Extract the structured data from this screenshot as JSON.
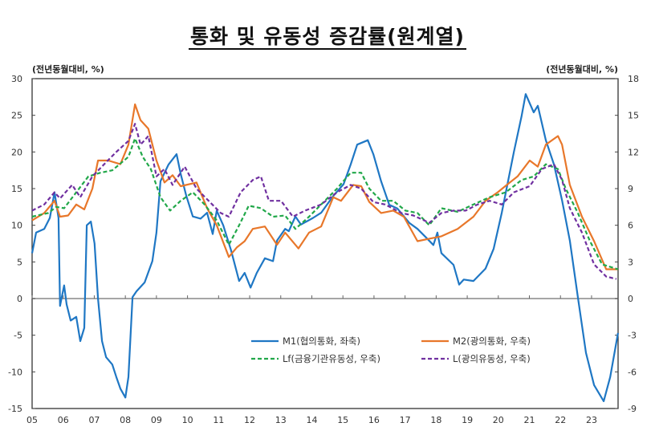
{
  "chart_data": {
    "type": "line",
    "title": "통화 및 유동성 증감률(원계열)",
    "ylabel_left": "(전년동월대비, %)",
    "ylabel_right": "(전년동월대비, %)",
    "ylim_left": [
      -15,
      30
    ],
    "ylim_right": [
      -9,
      18
    ],
    "yticks_left": [
      30,
      25,
      20,
      15,
      10,
      5,
      0,
      -5,
      -10,
      -15
    ],
    "yticks_right": [
      18,
      15,
      12,
      9,
      6,
      3,
      0,
      -3,
      -6,
      -9
    ],
    "xlim": [
      2005.0,
      2023.85
    ],
    "xticks": [
      {
        "year": 2005,
        "label": "05"
      },
      {
        "year": 2006,
        "label": "06"
      },
      {
        "year": 2007,
        "label": "07"
      },
      {
        "year": 2008,
        "label": "08"
      },
      {
        "year": 2009,
        "label": "09"
      },
      {
        "year": 2010,
        "label": "10"
      },
      {
        "year": 2011,
        "label": "11"
      },
      {
        "year": 2012,
        "label": "12"
      },
      {
        "year": 2013,
        "label": "13"
      },
      {
        "year": 2014,
        "label": "14"
      },
      {
        "year": 2015,
        "label": "15"
      },
      {
        "year": 2016,
        "label": "16"
      },
      {
        "year": 2017,
        "label": "17"
      },
      {
        "year": 2018,
        "label": "18"
      },
      {
        "year": 2019,
        "label": "19"
      },
      {
        "year": 2020,
        "label": "20"
      },
      {
        "year": 2021,
        "label": "21"
      },
      {
        "year": 2022,
        "label": "22"
      },
      {
        "year": 2023,
        "label": "23"
      }
    ],
    "legend_position": "bottom-center",
    "grid": false,
    "series": [
      {
        "name": "M1(협의통화, 좌축)",
        "axis": "left",
        "color": "#1f77c4",
        "dash": false,
        "points": [
          [
            2005.0,
            6.2
          ],
          [
            2005.13,
            9.0
          ],
          [
            2005.39,
            9.5
          ],
          [
            2005.57,
            11.0
          ],
          [
            2005.72,
            14.5
          ],
          [
            2005.85,
            11.0
          ],
          [
            2005.9,
            -1.0
          ],
          [
            2006.03,
            1.8
          ],
          [
            2006.11,
            -0.8
          ],
          [
            2006.24,
            -3.0
          ],
          [
            2006.42,
            -2.5
          ],
          [
            2006.55,
            -5.8
          ],
          [
            2006.68,
            -4.0
          ],
          [
            2006.76,
            10.0
          ],
          [
            2006.89,
            10.5
          ],
          [
            2007.01,
            7.5
          ],
          [
            2007.12,
            0
          ],
          [
            2007.25,
            -5.8
          ],
          [
            2007.38,
            -8.0
          ],
          [
            2007.58,
            -9.0
          ],
          [
            2007.71,
            -10.7
          ],
          [
            2007.84,
            -12.3
          ],
          [
            2008.0,
            -13.5
          ],
          [
            2008.1,
            -10.7
          ],
          [
            2008.23,
            0.2
          ],
          [
            2008.36,
            1.0
          ],
          [
            2008.62,
            2.2
          ],
          [
            2008.87,
            5.1
          ],
          [
            2009.0,
            9.0
          ],
          [
            2009.13,
            16.0
          ],
          [
            2009.39,
            18.3
          ],
          [
            2009.65,
            19.7
          ],
          [
            2009.78,
            17.0
          ],
          [
            2009.96,
            14.0
          ],
          [
            2010.17,
            11.2
          ],
          [
            2010.42,
            10.9
          ],
          [
            2010.63,
            11.7
          ],
          [
            2010.81,
            8.8
          ],
          [
            2010.94,
            12.0
          ],
          [
            2011.15,
            10.0
          ],
          [
            2011.4,
            6.6
          ],
          [
            2011.66,
            2.4
          ],
          [
            2011.84,
            3.5
          ],
          [
            2012.03,
            1.5
          ],
          [
            2012.23,
            3.5
          ],
          [
            2012.49,
            5.5
          ],
          [
            2012.75,
            5.1
          ],
          [
            2012.88,
            7.9
          ],
          [
            2013.14,
            9.5
          ],
          [
            2013.26,
            9.2
          ],
          [
            2013.47,
            11.2
          ],
          [
            2013.65,
            10.1
          ],
          [
            2014.04,
            11.0
          ],
          [
            2014.3,
            11.7
          ],
          [
            2014.69,
            14.0
          ],
          [
            2015.02,
            15.6
          ],
          [
            2015.25,
            18.3
          ],
          [
            2015.46,
            21.0
          ],
          [
            2015.8,
            21.6
          ],
          [
            2015.98,
            19.7
          ],
          [
            2016.23,
            16.0
          ],
          [
            2016.49,
            12.8
          ],
          [
            2016.75,
            12.3
          ],
          [
            2017.14,
            10.3
          ],
          [
            2017.4,
            9.5
          ],
          [
            2017.66,
            8.4
          ],
          [
            2017.91,
            7.3
          ],
          [
            2018.04,
            9.0
          ],
          [
            2018.17,
            6.2
          ],
          [
            2018.56,
            4.6
          ],
          [
            2018.74,
            1.9
          ],
          [
            2018.89,
            2.6
          ],
          [
            2019.2,
            2.4
          ],
          [
            2019.59,
            4.1
          ],
          [
            2019.85,
            6.8
          ],
          [
            2020.11,
            11.7
          ],
          [
            2020.5,
            20.0
          ],
          [
            2020.75,
            24.9
          ],
          [
            2020.88,
            27.9
          ],
          [
            2021.14,
            25.4
          ],
          [
            2021.27,
            26.3
          ],
          [
            2021.53,
            21.6
          ],
          [
            2021.79,
            18.3
          ],
          [
            2022.05,
            13.4
          ],
          [
            2022.3,
            7.9
          ],
          [
            2022.56,
            0.2
          ],
          [
            2022.82,
            -7.4
          ],
          [
            2023.08,
            -11.8
          ],
          [
            2023.39,
            -14.0
          ],
          [
            2023.6,
            -10.7
          ],
          [
            2023.85,
            -4.7
          ]
        ]
      },
      {
        "name": "M2(광의통화, 우축)",
        "axis": "right",
        "color": "#e8772a",
        "dash": false,
        "points": [
          [
            2005.0,
            6.4
          ],
          [
            2005.39,
            7.0
          ],
          [
            2005.72,
            8.0
          ],
          [
            2005.9,
            6.7
          ],
          [
            2006.16,
            6.8
          ],
          [
            2006.42,
            7.7
          ],
          [
            2006.68,
            7.3
          ],
          [
            2006.94,
            9.0
          ],
          [
            2007.12,
            11.3
          ],
          [
            2007.45,
            11.3
          ],
          [
            2007.84,
            11.0
          ],
          [
            2008.1,
            12.6
          ],
          [
            2008.31,
            15.9
          ],
          [
            2008.49,
            14.6
          ],
          [
            2008.74,
            13.9
          ],
          [
            2009.0,
            11.3
          ],
          [
            2009.26,
            9.5
          ],
          [
            2009.52,
            10.1
          ],
          [
            2009.78,
            9.2
          ],
          [
            2010.29,
            9.5
          ],
          [
            2010.63,
            7.4
          ],
          [
            2010.94,
            6.0
          ],
          [
            2011.33,
            3.4
          ],
          [
            2011.59,
            4.2
          ],
          [
            2011.84,
            4.7
          ],
          [
            2012.1,
            5.7
          ],
          [
            2012.49,
            5.9
          ],
          [
            2012.88,
            4.4
          ],
          [
            2013.14,
            5.4
          ],
          [
            2013.57,
            4.1
          ],
          [
            2013.91,
            5.4
          ],
          [
            2014.3,
            5.9
          ],
          [
            2014.69,
            8.3
          ],
          [
            2014.94,
            8.0
          ],
          [
            2015.33,
            9.3
          ],
          [
            2015.59,
            9.2
          ],
          [
            2015.85,
            7.9
          ],
          [
            2016.23,
            7.0
          ],
          [
            2016.62,
            7.2
          ],
          [
            2016.96,
            6.7
          ],
          [
            2017.4,
            4.7
          ],
          [
            2017.78,
            4.9
          ],
          [
            2018.17,
            5.1
          ],
          [
            2018.69,
            5.7
          ],
          [
            2019.2,
            6.7
          ],
          [
            2019.59,
            8.0
          ],
          [
            2019.98,
            8.7
          ],
          [
            2020.37,
            9.5
          ],
          [
            2020.62,
            10.0
          ],
          [
            2021.01,
            11.3
          ],
          [
            2021.27,
            10.8
          ],
          [
            2021.53,
            12.6
          ],
          [
            2021.92,
            13.3
          ],
          [
            2022.05,
            12.6
          ],
          [
            2022.3,
            9.3
          ],
          [
            2022.69,
            6.7
          ],
          [
            2023.08,
            4.7
          ],
          [
            2023.47,
            2.4
          ],
          [
            2023.85,
            2.4
          ]
        ]
      },
      {
        "name": "Lf(금융기관유동성, 우축)",
        "axis": "right",
        "color": "#22a84a",
        "dash": true,
        "points": [
          [
            2005.0,
            6.7
          ],
          [
            2005.52,
            7.0
          ],
          [
            2005.78,
            7.5
          ],
          [
            2006.03,
            7.4
          ],
          [
            2006.42,
            8.7
          ],
          [
            2006.81,
            10.0
          ],
          [
            2007.2,
            10.3
          ],
          [
            2007.58,
            10.5
          ],
          [
            2008.1,
            11.6
          ],
          [
            2008.31,
            13.1
          ],
          [
            2008.56,
            11.6
          ],
          [
            2008.82,
            10.6
          ],
          [
            2009.13,
            8.3
          ],
          [
            2009.44,
            7.2
          ],
          [
            2009.78,
            8.0
          ],
          [
            2010.17,
            8.7
          ],
          [
            2010.55,
            7.7
          ],
          [
            2010.94,
            6.4
          ],
          [
            2011.33,
            4.4
          ],
          [
            2011.66,
            6.0
          ],
          [
            2011.97,
            7.6
          ],
          [
            2012.36,
            7.4
          ],
          [
            2012.75,
            6.7
          ],
          [
            2013.14,
            6.8
          ],
          [
            2013.47,
            5.7
          ],
          [
            2013.91,
            6.7
          ],
          [
            2014.3,
            7.7
          ],
          [
            2014.81,
            9.0
          ],
          [
            2015.25,
            10.3
          ],
          [
            2015.59,
            10.3
          ],
          [
            2015.85,
            9.0
          ],
          [
            2016.23,
            8.0
          ],
          [
            2016.62,
            8.0
          ],
          [
            2017.01,
            7.2
          ],
          [
            2017.4,
            7.0
          ],
          [
            2017.78,
            6.0
          ],
          [
            2018.17,
            7.4
          ],
          [
            2018.69,
            7.1
          ],
          [
            2019.2,
            7.7
          ],
          [
            2019.72,
            8.3
          ],
          [
            2020.24,
            8.7
          ],
          [
            2020.75,
            9.7
          ],
          [
            2021.14,
            10.0
          ],
          [
            2021.53,
            11.0
          ],
          [
            2021.92,
            10.6
          ],
          [
            2022.17,
            9.0
          ],
          [
            2022.56,
            7.0
          ],
          [
            2022.95,
            4.7
          ],
          [
            2023.34,
            2.8
          ],
          [
            2023.85,
            2.4
          ]
        ]
      },
      {
        "name": "L(광의유동성, 우축)",
        "axis": "right",
        "color": "#7030a0",
        "dash": true,
        "points": [
          [
            2005.0,
            7.2
          ],
          [
            2005.39,
            7.7
          ],
          [
            2005.72,
            8.7
          ],
          [
            2005.9,
            8.2
          ],
          [
            2006.29,
            9.3
          ],
          [
            2006.55,
            8.3
          ],
          [
            2006.94,
            10.0
          ],
          [
            2007.32,
            11.0
          ],
          [
            2007.71,
            12.0
          ],
          [
            2008.1,
            12.9
          ],
          [
            2008.31,
            14.3
          ],
          [
            2008.49,
            12.6
          ],
          [
            2008.74,
            13.3
          ],
          [
            2009.0,
            10.0
          ],
          [
            2009.26,
            10.6
          ],
          [
            2009.52,
            9.3
          ],
          [
            2009.91,
            10.8
          ],
          [
            2010.29,
            9.0
          ],
          [
            2010.68,
            8.0
          ],
          [
            2011.07,
            7.0
          ],
          [
            2011.33,
            6.7
          ],
          [
            2011.71,
            8.7
          ],
          [
            2012.1,
            9.7
          ],
          [
            2012.36,
            10.0
          ],
          [
            2012.62,
            8.0
          ],
          [
            2013.01,
            8.0
          ],
          [
            2013.39,
            6.7
          ],
          [
            2013.78,
            7.2
          ],
          [
            2014.3,
            7.7
          ],
          [
            2014.81,
            8.7
          ],
          [
            2015.25,
            9.3
          ],
          [
            2015.59,
            9.0
          ],
          [
            2015.98,
            7.9
          ],
          [
            2016.36,
            7.7
          ],
          [
            2016.88,
            7.0
          ],
          [
            2017.27,
            6.8
          ],
          [
            2017.78,
            6.2
          ],
          [
            2018.17,
            7.0
          ],
          [
            2018.56,
            7.2
          ],
          [
            2018.95,
            7.2
          ],
          [
            2019.33,
            7.7
          ],
          [
            2019.72,
            8.0
          ],
          [
            2020.11,
            7.7
          ],
          [
            2020.5,
            8.7
          ],
          [
            2021.01,
            9.2
          ],
          [
            2021.4,
            10.6
          ],
          [
            2021.79,
            11.0
          ],
          [
            2022.05,
            9.7
          ],
          [
            2022.3,
            7.4
          ],
          [
            2022.69,
            5.4
          ],
          [
            2023.08,
            2.8
          ],
          [
            2023.47,
            1.8
          ],
          [
            2023.8,
            1.6
          ]
        ]
      }
    ]
  }
}
